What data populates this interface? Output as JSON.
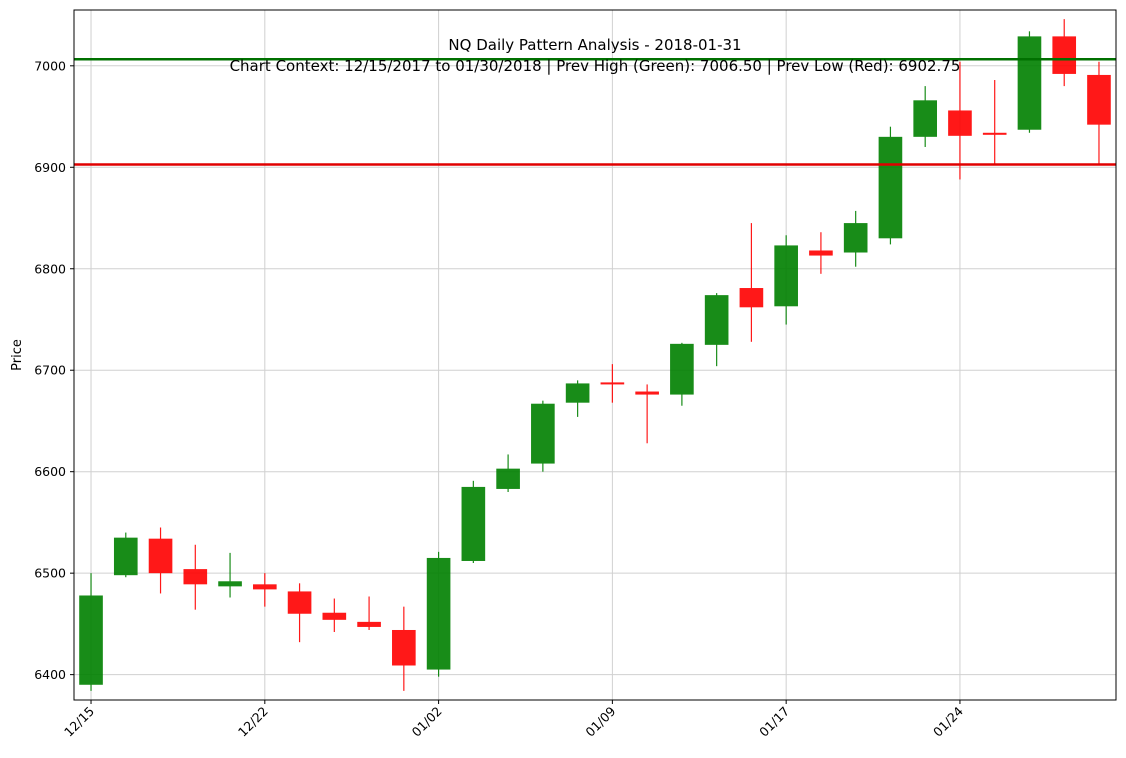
{
  "chart_data": {
    "type": "candlestick",
    "title": "NQ Daily Pattern Analysis - 2018-01-31",
    "subtitle": "Chart Context: 12/15/2017 to 01/30/2018 | Prev High (Green): 7006.50 | Prev Low (Red): 6902.75",
    "ylabel": "Price",
    "xlabel": "",
    "ylim": [
      6375,
      7055
    ],
    "y_ticks": [
      6400,
      6500,
      6600,
      6700,
      6800,
      6900,
      7000
    ],
    "x_ticks": [
      {
        "date": "2017-12-15",
        "label": "12/15"
      },
      {
        "date": "2017-12-22",
        "label": "12/22"
      },
      {
        "date": "2018-01-02",
        "label": "01/02"
      },
      {
        "date": "2018-01-09",
        "label": "01/09"
      },
      {
        "date": "2018-01-17",
        "label": "01/17"
      },
      {
        "date": "2018-01-24",
        "label": "01/24"
      }
    ],
    "grid": true,
    "up_color": "#008000",
    "down_color": "#ff0000",
    "reference_lines": [
      {
        "name": "Prev High",
        "value": 7006.5,
        "color": "#007000"
      },
      {
        "name": "Prev Low",
        "value": 6902.75,
        "color": "#e00000"
      }
    ],
    "candles": [
      {
        "date": "2017-12-15",
        "open": 6390,
        "high": 6500,
        "low": 6384,
        "close": 6478
      },
      {
        "date": "2017-12-18",
        "open": 6498,
        "high": 6540,
        "low": 6496,
        "close": 6535
      },
      {
        "date": "2017-12-19",
        "open": 6534,
        "high": 6545,
        "low": 6480,
        "close": 6500
      },
      {
        "date": "2017-12-20",
        "open": 6504,
        "high": 6528,
        "low": 6464,
        "close": 6489
      },
      {
        "date": "2017-12-21",
        "open": 6487,
        "high": 6520,
        "low": 6476,
        "close": 6492
      },
      {
        "date": "2017-12-22",
        "open": 6489,
        "high": 6500,
        "low": 6467,
        "close": 6484
      },
      {
        "date": "2017-12-26",
        "open": 6482,
        "high": 6490,
        "low": 6432,
        "close": 6460
      },
      {
        "date": "2017-12-27",
        "open": 6461,
        "high": 6475,
        "low": 6442,
        "close": 6454
      },
      {
        "date": "2017-12-28",
        "open": 6452,
        "high": 6477,
        "low": 6444,
        "close": 6447
      },
      {
        "date": "2017-12-29",
        "open": 6444,
        "high": 6467,
        "low": 6384,
        "close": 6409
      },
      {
        "date": "2018-01-02",
        "open": 6405,
        "high": 6521,
        "low": 6398,
        "close": 6515
      },
      {
        "date": "2018-01-03",
        "open": 6512,
        "high": 6591,
        "low": 6510,
        "close": 6585
      },
      {
        "date": "2018-01-04",
        "open": 6583,
        "high": 6617,
        "low": 6580,
        "close": 6603
      },
      {
        "date": "2018-01-05",
        "open": 6608,
        "high": 6670,
        "low": 6600,
        "close": 6667
      },
      {
        "date": "2018-01-08",
        "open": 6668,
        "high": 6690,
        "low": 6654,
        "close": 6687
      },
      {
        "date": "2018-01-09",
        "open": 6688,
        "high": 6706,
        "low": 6668,
        "close": 6686
      },
      {
        "date": "2018-01-10",
        "open": 6679,
        "high": 6686,
        "low": 6628,
        "close": 6676
      },
      {
        "date": "2018-01-11",
        "open": 6676,
        "high": 6727,
        "low": 6665,
        "close": 6726
      },
      {
        "date": "2018-01-12",
        "open": 6725,
        "high": 6776,
        "low": 6704,
        "close": 6774
      },
      {
        "date": "2018-01-16",
        "open": 6781,
        "high": 6845,
        "low": 6728,
        "close": 6762
      },
      {
        "date": "2018-01-17",
        "open": 6763,
        "high": 6833,
        "low": 6745,
        "close": 6823
      },
      {
        "date": "2018-01-18",
        "open": 6818,
        "high": 6836,
        "low": 6795,
        "close": 6813
      },
      {
        "date": "2018-01-19",
        "open": 6816,
        "high": 6857,
        "low": 6802,
        "close": 6845
      },
      {
        "date": "2018-01-22",
        "open": 6830,
        "high": 6940,
        "low": 6824,
        "close": 6930
      },
      {
        "date": "2018-01-23",
        "open": 6930,
        "high": 6980,
        "low": 6920,
        "close": 6966
      },
      {
        "date": "2018-01-24",
        "open": 6956,
        "high": 7004,
        "low": 6888,
        "close": 6931
      },
      {
        "date": "2018-01-25",
        "open": 6934,
        "high": 6986,
        "low": 6902,
        "close": 6932
      },
      {
        "date": "2018-01-26",
        "open": 6937,
        "high": 7034,
        "low": 6934,
        "close": 7029
      },
      {
        "date": "2018-01-29",
        "open": 7029,
        "high": 7046,
        "low": 6980,
        "close": 6992
      },
      {
        "date": "2018-01-30",
        "open": 6991,
        "high": 7004,
        "low": 6902,
        "close": 6942
      }
    ]
  }
}
